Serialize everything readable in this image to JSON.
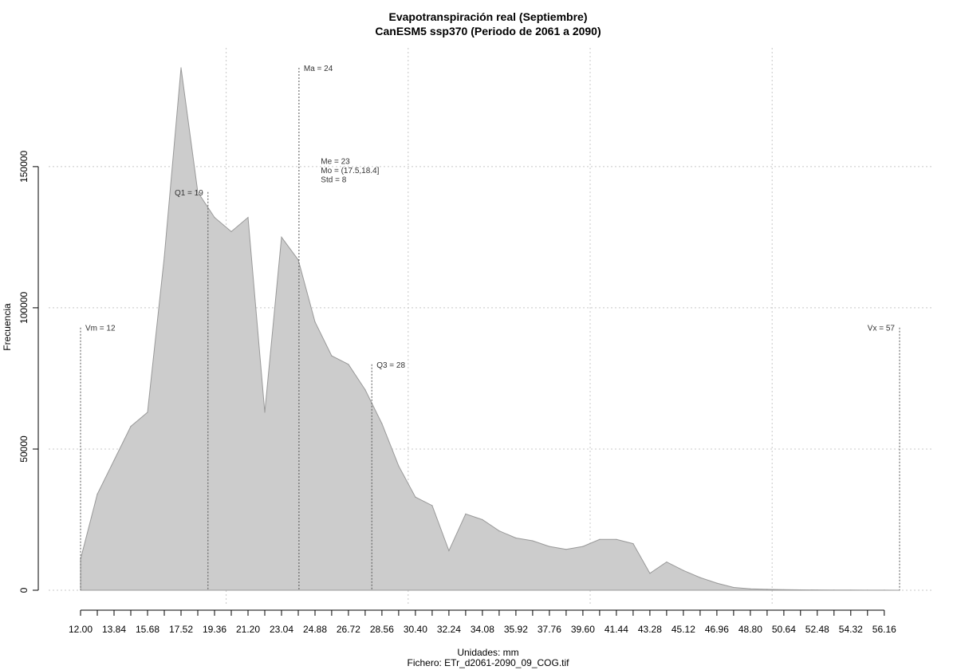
{
  "chart_data": {
    "type": "area",
    "title": "Evapotranspiración real (Septiembre)",
    "subtitle": "CanESM5 ssp370 (Periodo de 2061 a 2090)",
    "xlabel": "Unidades: mm",
    "ylabel": "Frecuencia",
    "caption": "Fichero: ETr_d2061-2090_09_COG.tif",
    "xlim": [
      12,
      57
    ],
    "ylim": [
      0,
      185000
    ],
    "x_ticks": [
      12.0,
      12.92,
      13.84,
      14.76,
      15.68,
      16.6,
      17.52,
      18.44,
      19.36,
      20.28,
      21.2,
      22.12,
      23.04,
      23.96,
      24.88,
      25.8,
      26.72,
      27.64,
      28.56,
      29.48,
      30.4,
      31.32,
      32.24,
      33.16,
      34.08,
      35.0,
      35.92,
      36.84,
      37.76,
      38.68,
      39.6,
      40.52,
      41.44,
      42.36,
      43.28,
      44.2,
      45.12,
      46.04,
      46.96,
      47.88,
      48.8,
      49.72,
      50.64,
      51.56,
      52.48,
      53.4,
      54.32,
      55.24,
      56.16
    ],
    "x_tick_labels": [
      "12.00",
      "13.84",
      "15.68",
      "17.52",
      "19.36",
      "21.20",
      "23.04",
      "24.88",
      "26.72",
      "28.56",
      "30.40",
      "32.24",
      "34.08",
      "35.92",
      "37.76",
      "39.60",
      "41.44",
      "43.28",
      "45.12",
      "46.96",
      "48.80",
      "50.64",
      "52.48",
      "54.32",
      "56.16"
    ],
    "y_ticks": [
      0,
      50000,
      100000,
      150000
    ],
    "y_tick_labels": [
      "0",
      "50000",
      "100000",
      "150000"
    ],
    "x_gridlines": [
      20,
      30,
      40,
      50
    ],
    "y_gridlines": [
      0,
      50000,
      100000,
      150000
    ],
    "grid": true,
    "fill_color": "#cccccc",
    "line_color": "#999999",
    "x": [
      12.0,
      12.92,
      13.84,
      14.76,
      15.68,
      16.6,
      17.52,
      18.44,
      19.36,
      20.28,
      21.2,
      22.12,
      23.04,
      23.96,
      24.88,
      25.8,
      26.72,
      27.64,
      28.56,
      29.48,
      30.4,
      31.32,
      32.24,
      33.16,
      34.08,
      35.0,
      35.92,
      36.84,
      37.76,
      38.68,
      39.6,
      40.52,
      41.44,
      42.36,
      43.28,
      44.2,
      45.12,
      46.04,
      46.96,
      47.88,
      48.8,
      49.72,
      50.64,
      51.56,
      52.48,
      53.4,
      54.32,
      55.24,
      56.16,
      57.0
    ],
    "y": [
      11000,
      34000,
      46000,
      58000,
      63000,
      118000,
      185000,
      141000,
      132000,
      127000,
      132000,
      63000,
      125000,
      117000,
      95000,
      83000,
      80000,
      71000,
      59000,
      44000,
      33000,
      30000,
      14000,
      27000,
      25000,
      21000,
      18500,
      17500,
      15500,
      14500,
      15500,
      18000,
      18000,
      16500,
      6000,
      10000,
      7000,
      4500,
      2500,
      1000,
      500,
      300,
      200,
      150,
      100,
      80,
      60,
      40,
      20,
      10
    ],
    "markers": [
      {
        "label": "Vm = 12",
        "x": 12.0,
        "y_top": 93000,
        "align": "right"
      },
      {
        "label": "Q1 = 19",
        "x": 19.0,
        "y_top": 141000,
        "align": "left"
      },
      {
        "label": "Ma = 24",
        "x": 24.0,
        "y_top": 185000,
        "align": "right"
      },
      {
        "label": "Q3 = 28",
        "x": 28.0,
        "y_top": 80000,
        "align": "right"
      },
      {
        "label": "Vx = 57",
        "x": 57.0,
        "y_top": 93000,
        "align": "left"
      }
    ],
    "stats_text": [
      "Me = 23",
      "Mo = (17.5,18.4]",
      "Std = 8"
    ],
    "stats_anchor": {
      "x": 25.2,
      "y": 151000
    }
  }
}
